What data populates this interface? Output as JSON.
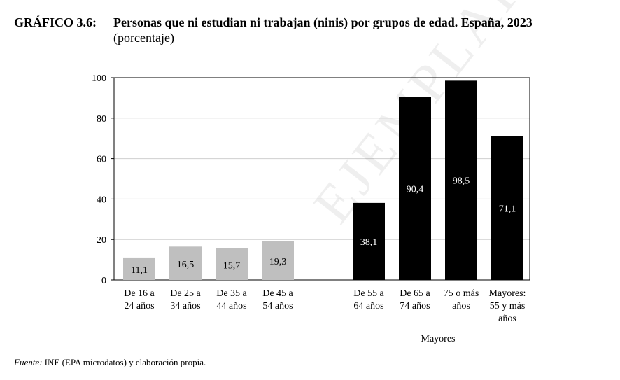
{
  "chart_data": {
    "type": "bar",
    "figure_label": "GRÁFICO 3.6:",
    "title": "Personas que ni estudian ni trabajan (ninis) por grupos de edad. España, 2023",
    "subtitle": "(porcentaje)",
    "ylim": [
      0,
      100
    ],
    "yticks": [
      "0",
      "20",
      "40",
      "60",
      "80",
      "100"
    ],
    "categories": [
      {
        "lines": [
          "De 16 a",
          "24 años"
        ],
        "value": 11.1,
        "label": "11,1",
        "group": "young"
      },
      {
        "lines": [
          "De 25 a",
          "34 años"
        ],
        "value": 16.5,
        "label": "16,5",
        "group": "young"
      },
      {
        "lines": [
          "De 35 a",
          "44 años"
        ],
        "value": 15.7,
        "label": "15,7",
        "group": "young"
      },
      {
        "lines": [
          "De 45 a",
          "54 años"
        ],
        "value": 19.3,
        "label": "19,3",
        "group": "young"
      },
      {
        "lines": [
          "De 55 a",
          "64 años"
        ],
        "value": 38.1,
        "label": "38,1",
        "group": "mayores"
      },
      {
        "lines": [
          "De 65 a",
          "74 años"
        ],
        "value": 90.4,
        "label": "90,4",
        "group": "mayores"
      },
      {
        "lines": [
          "75 o más",
          "años"
        ],
        "value": 98.5,
        "label": "98,5",
        "group": "mayores"
      },
      {
        "lines": [
          "Mayores:",
          "55 y más",
          "años"
        ],
        "value": 71.1,
        "label": "71,1",
        "group": "mayores"
      }
    ],
    "group_label": "Mayores",
    "colors": {
      "young": "#bfbfbf",
      "mayores": "#000000",
      "grid": "#cfcfcf"
    },
    "grid": true
  },
  "source": {
    "label": "Fuente:",
    "text": " INE (EPA microdatos) y elaboración propia."
  },
  "watermark": "EJEMPLAR DE LA MONOGRAFÍA"
}
